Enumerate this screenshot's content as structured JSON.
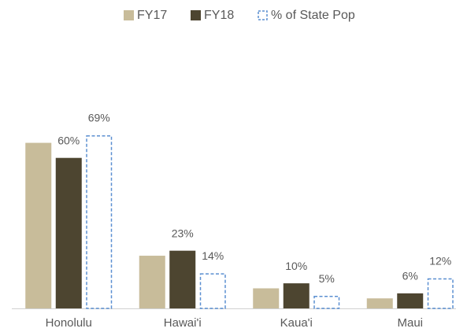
{
  "chart_data": {
    "type": "bar",
    "categories": [
      "Honolulu",
      "Hawai'i",
      "Kaua'i",
      "Maui"
    ],
    "series": [
      {
        "name": "FY17",
        "color": "#c8bc9a",
        "values": [
          66,
          21,
          8,
          4
        ]
      },
      {
        "name": "FY18",
        "color": "#4d4530",
        "values": [
          60,
          23,
          10,
          6
        ],
        "value_labels": [
          "60%",
          "23%",
          "10%",
          "6%"
        ]
      },
      {
        "name": "% of State Pop",
        "color": "#5b8fd1",
        "dashed": true,
        "values": [
          69,
          14,
          5,
          12
        ],
        "value_labels": [
          "69%",
          "14%",
          "5%",
          "12%"
        ]
      }
    ],
    "legend": "top"
  }
}
